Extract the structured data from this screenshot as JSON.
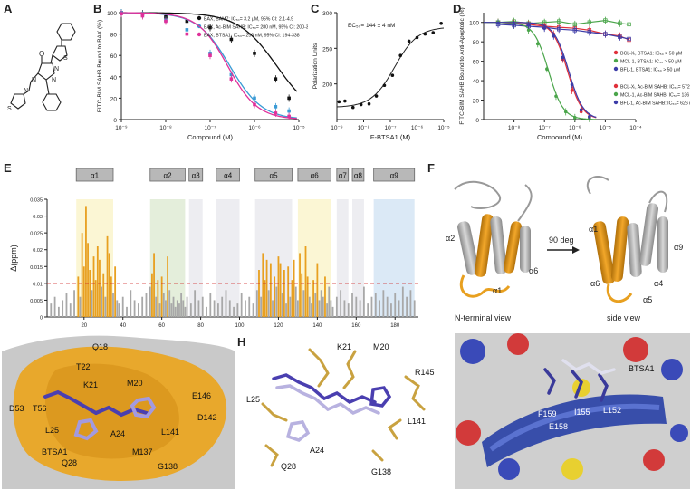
{
  "panel_labels": [
    "A",
    "B",
    "C",
    "D",
    "E",
    "F",
    "G",
    "H",
    "I"
  ],
  "chart_data": [
    {
      "panel": "B",
      "type": "line",
      "xlabel": "Compound (M)",
      "ylabel": "FITC-BIM SAHB Bound to BAX (%)",
      "x_scale": "log",
      "xlim": [
        1e-09,
        1e-05
      ],
      "ylim": [
        0,
        100
      ],
      "yticks": [
        0,
        20,
        40,
        60,
        80,
        100
      ],
      "xtick_labels": [
        "10⁻⁹",
        "10⁻⁸",
        "10⁻⁷",
        "10⁻⁶",
        "10⁻⁵"
      ],
      "legend_position": "top-right",
      "series": [
        {
          "name": "BAX, BAM7: IC₅₀= 3.2 μM, 95% CI: 2.1-4.9",
          "color": "#111111",
          "ic50": 3.2e-06,
          "hill": 1.0,
          "x": [
            1e-09,
            3e-09,
            1e-08,
            3e-08,
            1e-07,
            3e-07,
            1e-06,
            3e-06,
            6e-06
          ],
          "y": [
            100,
            99,
            96,
            92,
            86,
            75,
            62,
            38,
            20
          ]
        },
        {
          "name": "BAX, Ac-BIM SAHB: IC₅₀= 280 nM, 95% CI: 200-382",
          "color": "#3a9bd5",
          "ic50": 2.8e-07,
          "hill": 1.2,
          "x": [
            1e-09,
            3e-09,
            1e-08,
            3e-08,
            1e-07,
            3e-07,
            1e-06,
            3e-06,
            6e-06
          ],
          "y": [
            100,
            98,
            93,
            84,
            62,
            42,
            20,
            12,
            8
          ]
        },
        {
          "name": "BAX, BTSA1: IC₅₀= 250 nM, 95% CI: 194-338",
          "color": "#e0309a",
          "ic50": 2.5e-07,
          "hill": 1.3,
          "x": [
            1e-09,
            3e-09,
            1e-08,
            3e-08,
            1e-07,
            3e-07,
            1e-06,
            3e-06,
            6e-06
          ],
          "y": [
            99,
            97,
            92,
            80,
            60,
            38,
            14,
            6,
            3
          ]
        }
      ]
    },
    {
      "panel": "C",
      "type": "scatter",
      "annotation": "EC₅₀= 144 ± 4 nM",
      "xlabel": "F-BTSA1 (M)",
      "ylabel": "Polarization Units",
      "x_scale": "log",
      "xlim": [
        1e-09,
        1e-05
      ],
      "ylim": [
        150,
        300
      ],
      "yticks": [
        200,
        250,
        300
      ],
      "xtick_labels": [
        "10⁻⁹",
        "10⁻⁸",
        "10⁻⁷",
        "10⁻⁶",
        "10⁻⁵"
      ],
      "fit": {
        "bottom": 167,
        "top": 280,
        "ec50": 1.44e-07
      },
      "points": {
        "x": [
          1.2e-09,
          2e-09,
          4e-09,
          8e-09,
          1.6e-08,
          3e-08,
          6e-08,
          1.2e-07,
          2.4e-07,
          5e-07,
          1e-06,
          2e-06,
          4e-06,
          8e-06
        ],
        "y": [
          175,
          176,
          167,
          171,
          172,
          183,
          198,
          212,
          240,
          260,
          265,
          270,
          272,
          285
        ]
      }
    },
    {
      "panel": "D",
      "type": "line",
      "xlabel": "Compound (M)",
      "ylabel": "FITC-BIM SAHB Bound to Anti-Apoptotic (%)",
      "x_scale": "log",
      "xlim": [
        1e-09,
        0.0001
      ],
      "ylim": [
        0,
        110
      ],
      "yticks": [
        0,
        20,
        40,
        60,
        80,
        100
      ],
      "xtick_labels": [
        "10⁻⁸",
        "10⁻⁷",
        "10⁻⁶",
        "10⁻⁵",
        "10⁻⁴"
      ],
      "legend_position": "center-right",
      "series": [
        {
          "name": "BCL-Xₗ, BTSA1: IC₅₀ > 50 μM",
          "color": "#e0303a",
          "flat": true,
          "x": [
            3e-09,
            1e-08,
            3e-08,
            1e-07,
            3e-07,
            1e-06,
            3e-06,
            1e-05,
            3e-05,
            6e-05
          ],
          "y": [
            100,
            99,
            98,
            96,
            95,
            94,
            92,
            88,
            86,
            82
          ]
        },
        {
          "name": "MCL-1, BTSA1: IC₅₀ > 50 μM",
          "color": "#4aa54a",
          "flat": true,
          "x": [
            3e-09,
            1e-08,
            3e-08,
            1e-07,
            3e-07,
            1e-06,
            3e-06,
            1e-05,
            3e-05,
            6e-05
          ],
          "y": [
            100,
            101,
            99,
            100,
            101,
            98,
            100,
            102,
            99,
            98
          ]
        },
        {
          "name": "BFL-1, BTSA1: IC₅₀ > 50 μM",
          "color": "#3c3ca8",
          "flat": true,
          "x": [
            3e-09,
            1e-08,
            3e-08,
            1e-07,
            3e-07,
            1e-06,
            3e-06,
            1e-05,
            3e-05,
            6e-05
          ],
          "y": [
            98,
            97,
            96,
            95,
            93,
            92,
            90,
            88,
            85,
            83
          ]
        },
        {
          "name": "BCL-Xₗ, Ac-BIM SAHB: IC₅₀= 572 nM",
          "color": "#e0303a",
          "ic50": 5.72e-07,
          "hill": 1.8,
          "x": [
            3e-09,
            1e-08,
            3e-08,
            1e-07,
            2e-07,
            4e-07,
            8e-07,
            1.6e-06,
            3e-06
          ],
          "y": [
            100,
            99,
            98,
            96,
            88,
            62,
            30,
            8,
            2
          ]
        },
        {
          "name": "MCL-1, Ac-BIM SAHB: IC₅₀= 136 nM",
          "color": "#4aa54a",
          "ic50": 1.36e-07,
          "hill": 1.8,
          "x": [
            3e-09,
            1e-08,
            3e-08,
            6e-08,
            1.2e-07,
            2.4e-07,
            5e-07,
            1e-06,
            3e-06
          ],
          "y": [
            100,
            98,
            92,
            78,
            52,
            24,
            8,
            2,
            1
          ]
        },
        {
          "name": "BFL-1, Ac-BIM SAHB: IC₅₀= 626 nM",
          "color": "#3c3ca8",
          "ic50": 6.26e-07,
          "hill": 1.8,
          "x": [
            3e-09,
            1e-08,
            3e-08,
            1e-07,
            2e-07,
            4e-07,
            8e-07,
            1.6e-06,
            3e-06
          ],
          "y": [
            99,
            98,
            97,
            94,
            86,
            64,
            36,
            10,
            3
          ]
        }
      ]
    },
    {
      "panel": "E",
      "type": "bar",
      "ylabel": "Δ(ppm)",
      "ylim": [
        0,
        0.035
      ],
      "ytick_labels": [
        "0",
        "0.005",
        "0.01",
        "0.015",
        "0.02",
        "0.025",
        "0.03",
        "0.035"
      ],
      "yticks": [
        0,
        0.005,
        0.01,
        0.015,
        0.02,
        0.025,
        0.03,
        0.035
      ],
      "xlim": [
        1,
        192
      ],
      "xticks": [
        20,
        40,
        60,
        80,
        100,
        120,
        140,
        160,
        180
      ],
      "threshold": 0.01,
      "highlight_color": "#e8a020",
      "base_color": "#a8a8a8",
      "helices": [
        {
          "name": "α1",
          "start": 16,
          "end": 35,
          "color": "#fbf6d4"
        },
        {
          "name": "α2",
          "start": 54,
          "end": 72,
          "color": "#e4eedb"
        },
        {
          "name": "α3",
          "start": 74,
          "end": 81,
          "color": "#ededf1"
        },
        {
          "name": "α4",
          "start": 88,
          "end": 100,
          "color": "#ededf1"
        },
        {
          "name": "α5",
          "start": 108,
          "end": 127,
          "color": "#ededf1"
        },
        {
          "name": "α6",
          "start": 130,
          "end": 147,
          "color": "#fbf6d4"
        },
        {
          "name": "α7",
          "start": 150,
          "end": 156,
          "color": "#ededf1"
        },
        {
          "name": "α8",
          "start": 158,
          "end": 164,
          "color": "#ededf1"
        },
        {
          "name": "α9",
          "start": 169,
          "end": 190,
          "color": "#dbe9f6"
        }
      ],
      "residues": [
        3,
        5,
        7,
        9,
        11,
        13,
        15,
        17,
        18,
        19,
        20,
        21,
        22,
        23,
        24,
        25,
        26,
        27,
        28,
        29,
        30,
        31,
        32,
        33,
        34,
        35,
        36,
        37,
        38,
        40,
        42,
        44,
        46,
        48,
        50,
        52,
        54,
        55,
        56,
        57,
        58,
        59,
        60,
        61,
        62,
        63,
        64,
        65,
        66,
        67,
        68,
        69,
        70,
        71,
        72,
        73,
        75,
        77,
        79,
        81,
        83,
        85,
        87,
        89,
        91,
        93,
        95,
        97,
        99,
        101,
        103,
        105,
        107,
        109,
        110,
        111,
        112,
        113,
        114,
        115,
        116,
        117,
        118,
        119,
        120,
        121,
        122,
        123,
        124,
        125,
        126,
        127,
        128,
        129,
        130,
        131,
        132,
        133,
        134,
        135,
        136,
        137,
        138,
        139,
        140,
        141,
        142,
        143,
        144,
        145,
        146,
        147,
        148,
        150,
        152,
        154,
        156,
        158,
        160,
        162,
        164,
        166,
        168,
        170,
        172,
        174,
        176,
        178,
        180,
        182,
        184,
        186,
        188,
        190
      ],
      "values": [
        0.004,
        0.006,
        0.003,
        0.005,
        0.007,
        0.004,
        0.008,
        0.012,
        0.006,
        0.025,
        0.015,
        0.033,
        0.022,
        0.014,
        0.008,
        0.018,
        0.011,
        0.021,
        0.017,
        0.009,
        0.013,
        0.006,
        0.024,
        0.019,
        0.012,
        0.007,
        0.015,
        0.005,
        0.004,
        0.006,
        0.003,
        0.008,
        0.005,
        0.004,
        0.006,
        0.007,
        0.009,
        0.013,
        0.019,
        0.006,
        0.011,
        0.004,
        0.012,
        0.007,
        0.005,
        0.018,
        0.008,
        0.004,
        0.006,
        0.003,
        0.005,
        0.004,
        0.007,
        0.005,
        0.003,
        0.006,
        0.004,
        0.008,
        0.005,
        0.006,
        0.003,
        0.007,
        0.005,
        0.004,
        0.006,
        0.008,
        0.005,
        0.003,
        0.004,
        0.007,
        0.005,
        0.006,
        0.004,
        0.008,
        0.014,
        0.006,
        0.019,
        0.011,
        0.017,
        0.008,
        0.016,
        0.005,
        0.012,
        0.009,
        0.018,
        0.016,
        0.007,
        0.014,
        0.004,
        0.015,
        0.006,
        0.011,
        0.017,
        0.009,
        0.005,
        0.019,
        0.013,
        0.008,
        0.021,
        0.012,
        0.006,
        0.004,
        0.011,
        0.007,
        0.016,
        0.005,
        0.008,
        0.006,
        0.012,
        0.004,
        0.009,
        0.005,
        0.003,
        0.006,
        0.008,
        0.005,
        0.004,
        0.007,
        0.006,
        0.005,
        0.009,
        0.004,
        0.006,
        0.007,
        0.005,
        0.008,
        0.006,
        0.004,
        0.007,
        0.005,
        0.009,
        0.006,
        0.008,
        0.005
      ]
    }
  ],
  "panel_a": {
    "atom_labels": [
      "O",
      "N",
      "N",
      "N",
      "N",
      "S",
      "S"
    ]
  },
  "panel_f": {
    "left_caption": "N-terminal view",
    "right_caption": "side view",
    "arrow_label": "90 deg",
    "left_helices": [
      "α2",
      "α1",
      "α6"
    ],
    "right_helices": [
      "α1",
      "α9",
      "α6",
      "α4",
      "α5"
    ]
  },
  "panel_g": {
    "residues": [
      "Q18",
      "T22",
      "K21",
      "M20",
      "E146",
      "D53",
      "T56",
      "L25",
      "A24",
      "L141",
      "D142",
      "M137",
      "BTSA1",
      "Q28",
      "G138"
    ]
  },
  "panel_h": {
    "residues": [
      "K21",
      "M20",
      "R145",
      "L25",
      "L141",
      "A24",
      "Q28",
      "G138"
    ]
  },
  "panel_i": {
    "residues": [
      "BTSA1",
      "F159",
      "I155",
      "L152",
      "E158"
    ]
  }
}
